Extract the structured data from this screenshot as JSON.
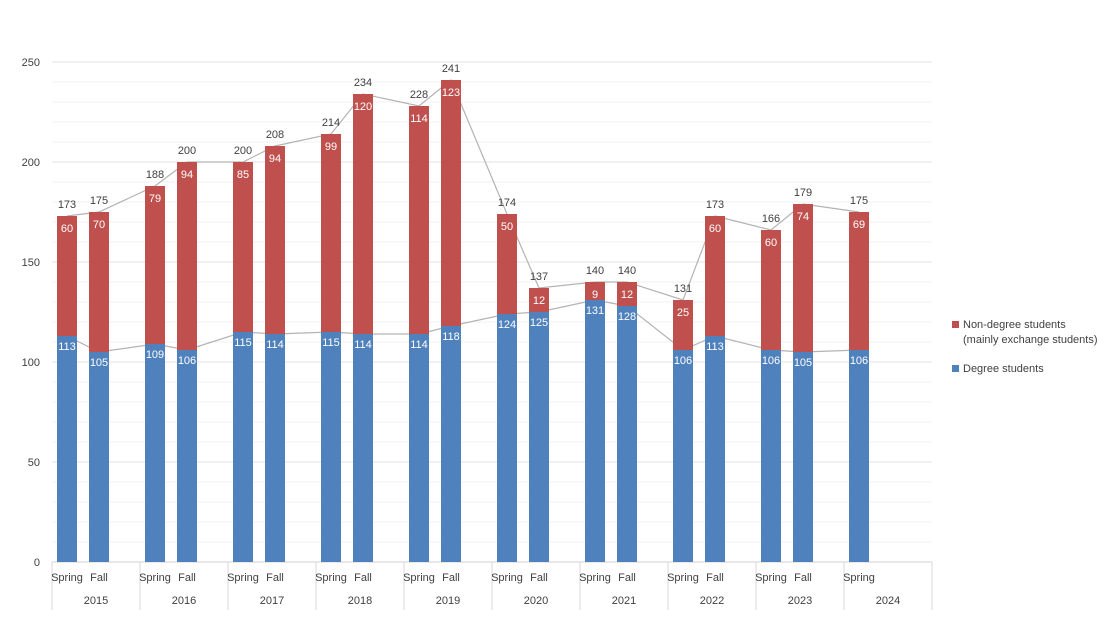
{
  "chart_data": {
    "type": "bar",
    "stacked": true,
    "title": "",
    "xlabel": "",
    "ylabel": "",
    "ylim": [
      0,
      250
    ],
    "yticks": [
      0,
      50,
      100,
      150,
      200,
      250
    ],
    "grid": true,
    "legend_position": "right",
    "groups": [
      "2015",
      "2016",
      "2017",
      "2018",
      "2019",
      "2020",
      "2021",
      "2022",
      "2023",
      "2024"
    ],
    "bars": [
      {
        "group": "2015",
        "label": "Spring",
        "degree": 113,
        "nondegree": 60,
        "total": 173
      },
      {
        "group": "2015",
        "label": "Fall",
        "degree": 105,
        "nondegree": 70,
        "total": 175
      },
      {
        "group": "2016",
        "label": "Spring",
        "degree": 109,
        "nondegree": 79,
        "total": 188
      },
      {
        "group": "2016",
        "label": "Fall",
        "degree": 106,
        "nondegree": 94,
        "total": 200
      },
      {
        "group": "2017",
        "label": "Spring",
        "degree": 115,
        "nondegree": 85,
        "total": 200
      },
      {
        "group": "2017",
        "label": "Fall",
        "degree": 114,
        "nondegree": 94,
        "total": 208
      },
      {
        "group": "2018",
        "label": "Spring",
        "degree": 115,
        "nondegree": 99,
        "total": 214
      },
      {
        "group": "2018",
        "label": "Fall",
        "degree": 114,
        "nondegree": 120,
        "total": 234
      },
      {
        "group": "2019",
        "label": "Spring",
        "degree": 114,
        "nondegree": 114,
        "total": 228
      },
      {
        "group": "2019",
        "label": "Fall",
        "degree": 118,
        "nondegree": 123,
        "total": 241
      },
      {
        "group": "2020",
        "label": "Spring",
        "degree": 124,
        "nondegree": 50,
        "total": 174
      },
      {
        "group": "2020",
        "label": "Fall",
        "degree": 125,
        "nondegree": 12,
        "total": 137
      },
      {
        "group": "2021",
        "label": "Spring",
        "degree": 131,
        "nondegree": 9,
        "total": 140
      },
      {
        "group": "2021",
        "label": "Fall",
        "degree": 128,
        "nondegree": 12,
        "total": 140
      },
      {
        "group": "2022",
        "label": "Spring",
        "degree": 106,
        "nondegree": 25,
        "total": 131
      },
      {
        "group": "2022",
        "label": "Fall",
        "degree": 113,
        "nondegree": 60,
        "total": 173
      },
      {
        "group": "2023",
        "label": "Spring",
        "degree": 106,
        "nondegree": 60,
        "total": 166
      },
      {
        "group": "2023",
        "label": "Fall",
        "degree": 105,
        "nondegree": 74,
        "total": 179
      },
      {
        "group": "2024",
        "label": "Spring",
        "degree": 106,
        "nondegree": 69,
        "total": 175
      }
    ],
    "series": [
      {
        "name": "Non-degree students (mainly exchange students)",
        "line1": "Non-degree students",
        "line2": "(mainly exchange students)",
        "key": "nondegree",
        "color": "#c0504d"
      },
      {
        "name": "Degree students",
        "key": "degree",
        "color": "#4f81bd"
      }
    ],
    "connector_color": "#b3b3b3",
    "grid_color": "#e3e3e3"
  }
}
